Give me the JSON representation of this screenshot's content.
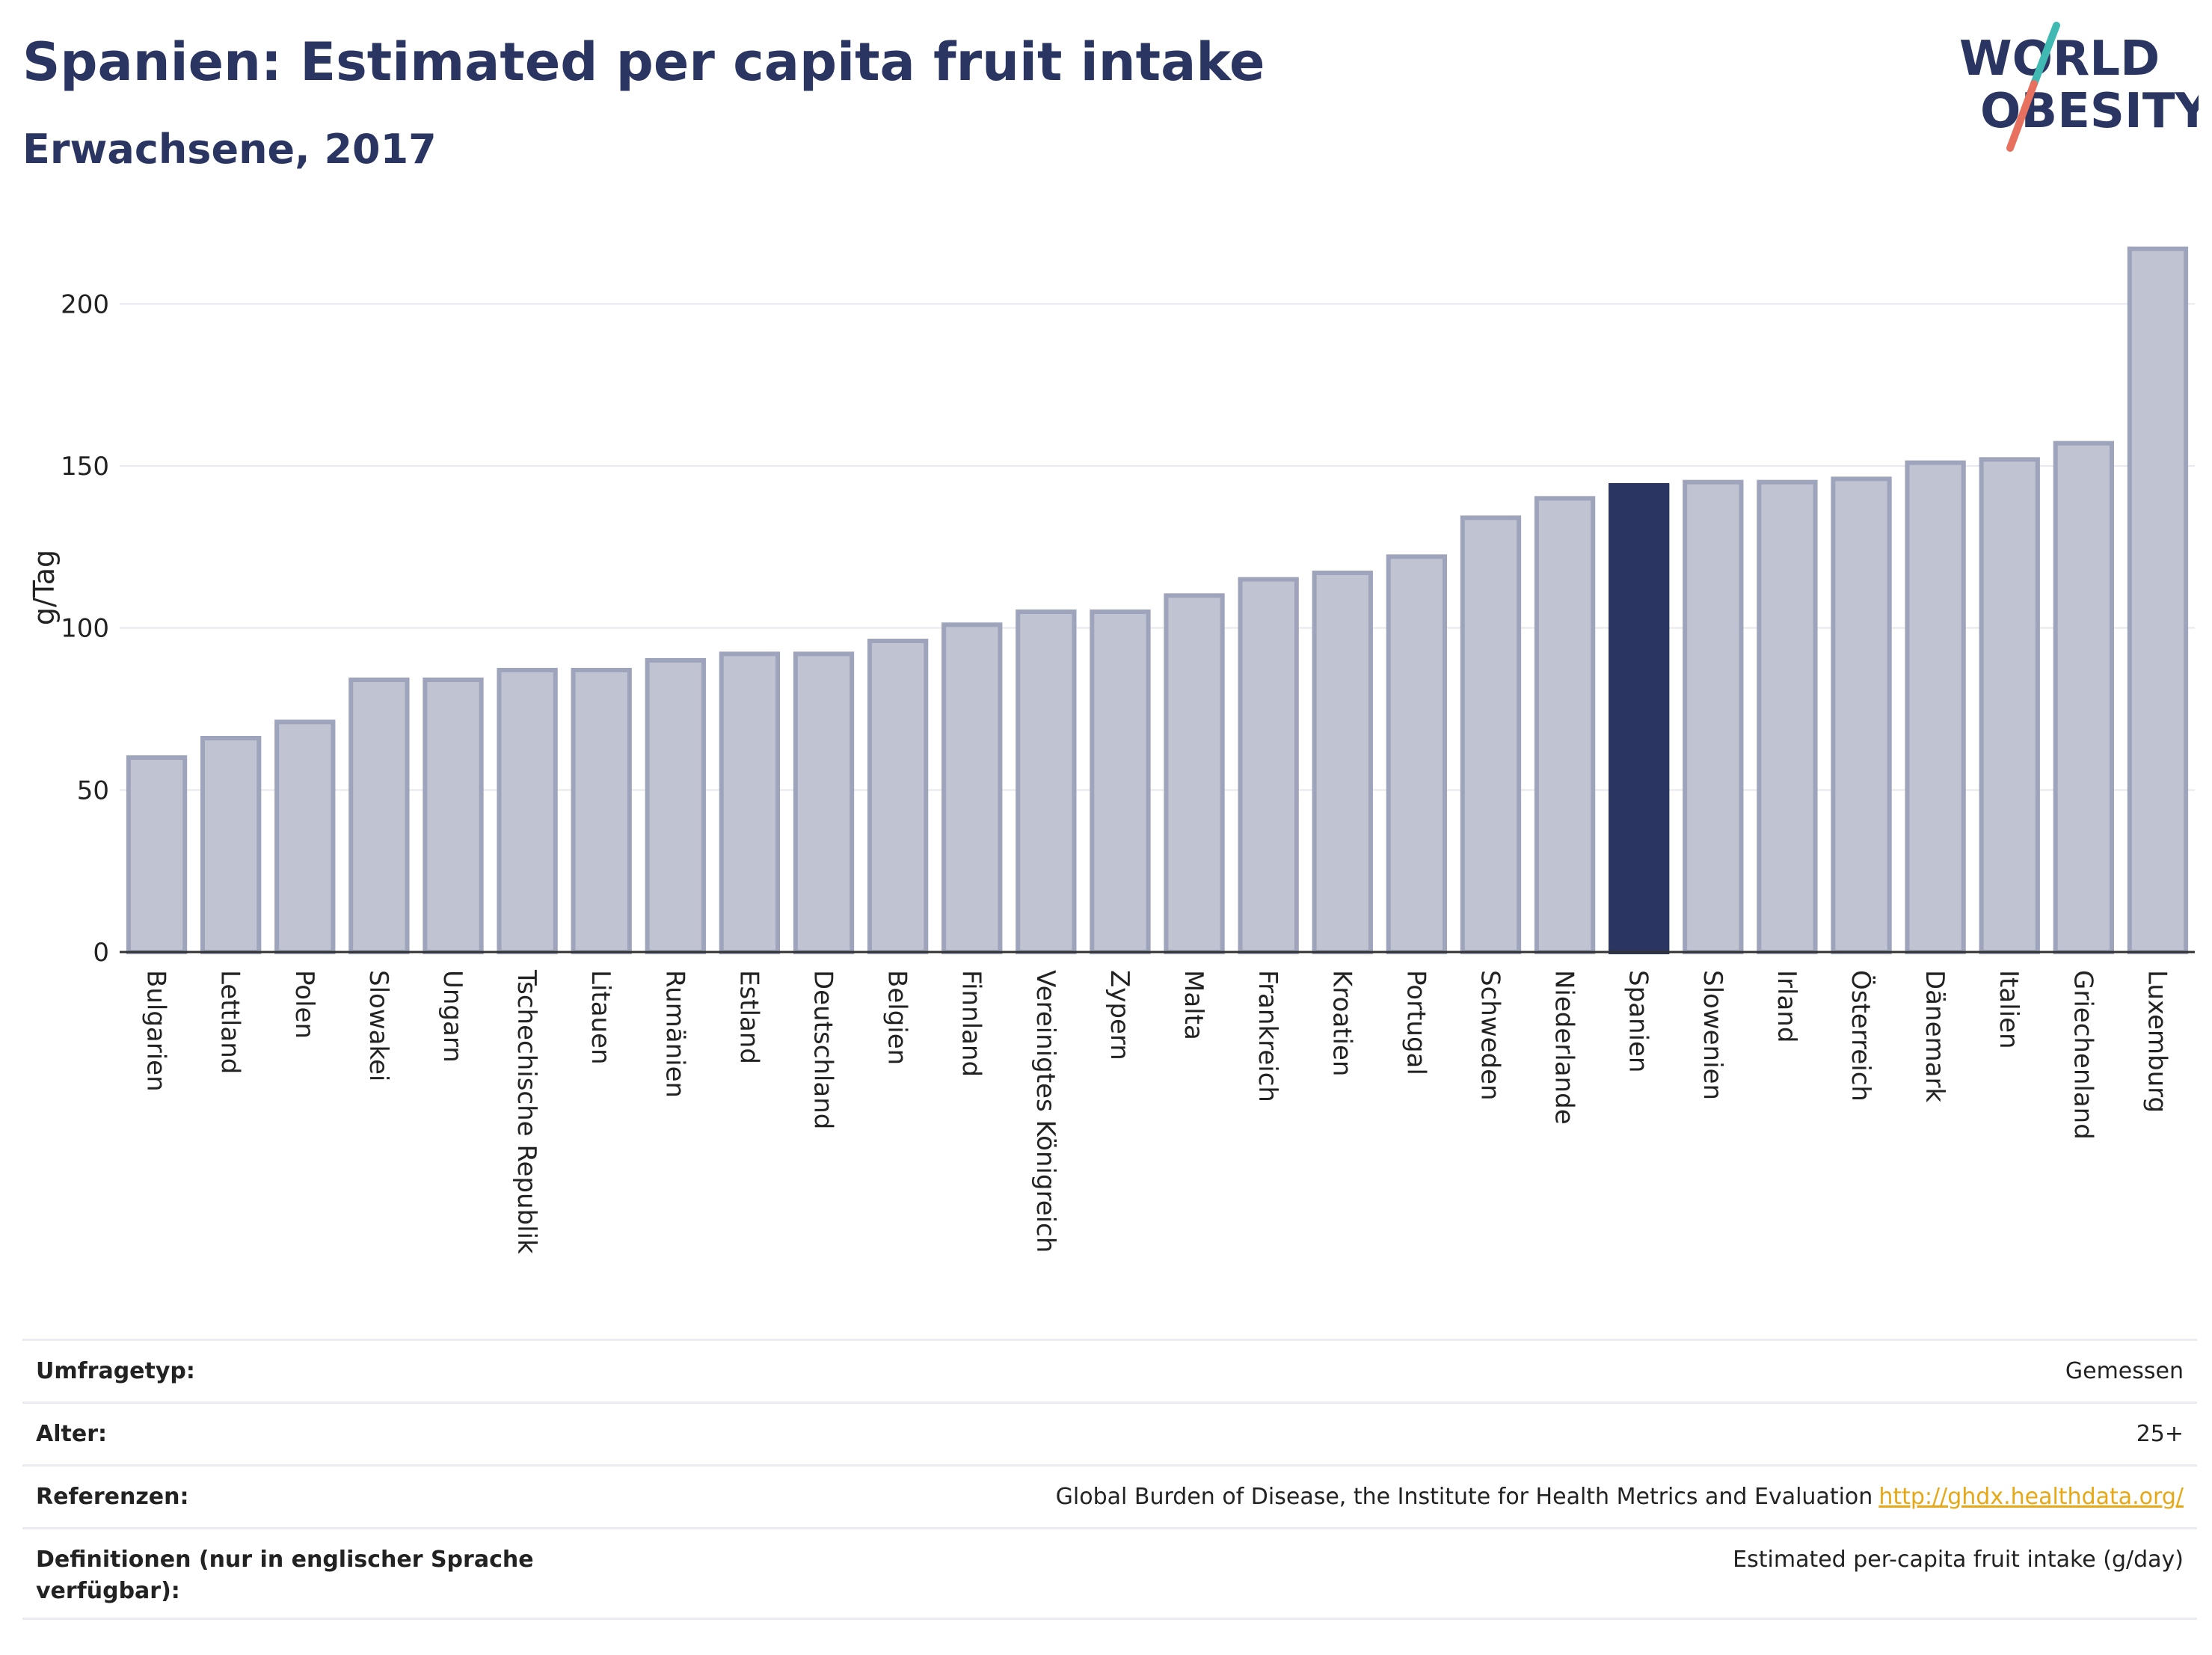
{
  "header": {
    "title": "Spanien: Estimated per capita fruit intake",
    "subtitle": "Erwachsene, 2017"
  },
  "logo": {
    "line1": "WORLD",
    "line2": "OBESITY"
  },
  "colors": {
    "bar": "#bfc3d2",
    "bar_border": "#9ea4bb",
    "highlight": "#2a3562",
    "grid": "#e8e8ee",
    "axis": "#333333",
    "logo_teal": "#3fb9b2",
    "logo_coral": "#e8705f",
    "link": "#e6a817"
  },
  "chart_data": {
    "type": "bar",
    "categories": [
      "Bulgarien",
      "Lettland",
      "Polen",
      "Slowakei",
      "Ungarn",
      "Tschechische Republik",
      "Litauen",
      "Rumänien",
      "Estland",
      "Deutschland",
      "Belgien",
      "Finnland",
      "Vereinigtes Königreich",
      "Zypern",
      "Malta",
      "Frankreich",
      "Kroatien",
      "Portugal",
      "Schweden",
      "Niederlande",
      "Spanien",
      "Slowenien",
      "Irland",
      "Österreich",
      "Dänemark",
      "Italien",
      "Griechenland",
      "Luxemburg"
    ],
    "values": [
      60,
      66,
      71,
      84,
      84,
      87,
      87,
      90,
      92,
      92,
      96,
      101,
      105,
      105,
      110,
      115,
      117,
      122,
      134,
      140,
      144,
      145,
      145,
      146,
      151,
      152,
      157,
      217
    ],
    "highlight": "Spanien",
    "ylabel": "g/Tag",
    "ylim": [
      0,
      225
    ],
    "yticks": [
      0,
      50,
      100,
      150,
      200
    ],
    "grid": true
  },
  "info": {
    "rows": [
      {
        "label": "Umfragetyp:",
        "value": "Gemessen"
      },
      {
        "label": "Alter:",
        "value": "25+"
      },
      {
        "label": "Referenzen:",
        "value": "Global Burden of Disease, the Institute for Health Metrics and Evaluation",
        "link": "http://ghdx.healthdata.org/"
      },
      {
        "label": "Definitionen (nur in englischer Sprache verfügbar):",
        "value": "Estimated per-capita fruit intake (g/day)"
      }
    ]
  }
}
